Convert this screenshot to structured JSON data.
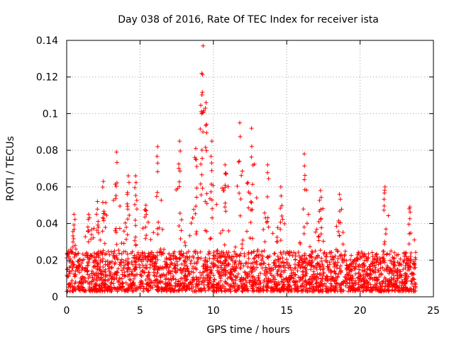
{
  "chart_data": {
    "type": "scatter",
    "title": "Day 038 of 2016, Rate Of TEC Index for receiver ista",
    "xlabel": "GPS time / hours",
    "ylabel": "ROTI / TECUs",
    "xlim": [
      0,
      25
    ],
    "ylim": [
      0,
      0.14
    ],
    "xticks": [
      0,
      5,
      10,
      15,
      20,
      25
    ],
    "yticks": [
      0,
      0.02,
      0.04,
      0.06,
      0.08,
      0.1,
      0.12,
      0.14
    ],
    "xtick_labels": [
      "0",
      "5",
      "10",
      "15",
      "20",
      "25"
    ],
    "ytick_labels": [
      "0",
      "0.02",
      "0.04",
      "0.06",
      "0.08",
      "0.1",
      "0.12",
      "0.14"
    ],
    "grid": true,
    "marker": "+",
    "color": "#ff0000",
    "series_note": "Dense scatter of ROTI values over 0-23.8 h; baseline ~0.005-0.02, with spikes up to ~0.137 near 9.3 h",
    "peaks": [
      {
        "x": 0.5,
        "y": 0.045
      },
      {
        "x": 1.5,
        "y": 0.045
      },
      {
        "x": 2.1,
        "y": 0.052
      },
      {
        "x": 2.5,
        "y": 0.063
      },
      {
        "x": 3.4,
        "y": 0.079
      },
      {
        "x": 4.2,
        "y": 0.066
      },
      {
        "x": 4.7,
        "y": 0.066
      },
      {
        "x": 5.4,
        "y": 0.05
      },
      {
        "x": 6.2,
        "y": 0.082
      },
      {
        "x": 7.7,
        "y": 0.085
      },
      {
        "x": 8.8,
        "y": 0.081
      },
      {
        "x": 9.2,
        "y": 0.122
      },
      {
        "x": 9.3,
        "y": 0.137
      },
      {
        "x": 9.5,
        "y": 0.106
      },
      {
        "x": 9.9,
        "y": 0.085
      },
      {
        "x": 10.8,
        "y": 0.072
      },
      {
        "x": 11.8,
        "y": 0.095
      },
      {
        "x": 12.6,
        "y": 0.092
      },
      {
        "x": 13.7,
        "y": 0.072
      },
      {
        "x": 14.6,
        "y": 0.06
      },
      {
        "x": 16.2,
        "y": 0.078
      },
      {
        "x": 17.3,
        "y": 0.058
      },
      {
        "x": 18.6,
        "y": 0.056
      },
      {
        "x": 21.7,
        "y": 0.06
      },
      {
        "x": 23.4,
        "y": 0.049
      }
    ],
    "baseline_range": [
      0.003,
      0.025
    ],
    "x_extent": [
      0,
      23.8
    ]
  }
}
